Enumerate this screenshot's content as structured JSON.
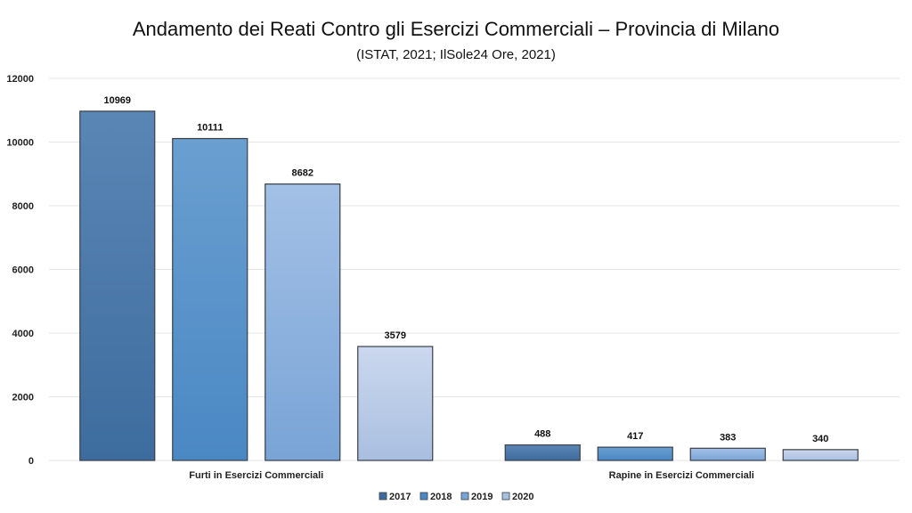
{
  "chart_data": {
    "type": "bar",
    "title": "Andamento dei Reati Contro gli Esercizi Commerciali – Provincia di Milano",
    "subtitle": "(ISTAT, 2021; IlSole24 Ore, 2021)",
    "categories": [
      "Furti in Esercizi Commerciali",
      "Rapine in Esercizi Commerciali"
    ],
    "series": [
      {
        "name": "2017",
        "values": [
          10969,
          488
        ],
        "color": "#3d6c9e",
        "color_top": "#5a86b5"
      },
      {
        "name": "2018",
        "values": [
          10111,
          417
        ],
        "color": "#4a88c4",
        "color_top": "#6a9fd0"
      },
      {
        "name": "2019",
        "values": [
          8682,
          383
        ],
        "color": "#79a4d6",
        "color_top": "#a3c0e6"
      },
      {
        "name": "2020",
        "values": [
          3579,
          340
        ],
        "color": "#a9bfe0",
        "color_top": "#cbd8ee"
      }
    ],
    "ylim": [
      0,
      12000
    ],
    "yticks": [
      0,
      2000,
      4000,
      6000,
      8000,
      10000,
      12000
    ],
    "grid": true,
    "legend": "bottom",
    "xlabel": "",
    "ylabel": ""
  }
}
